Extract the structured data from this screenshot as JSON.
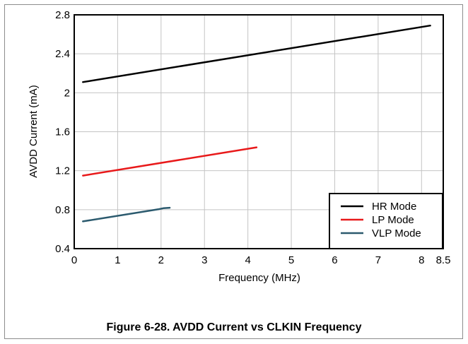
{
  "caption": "Figure 6-28. AVDD Current vs CLKIN Frequency",
  "chart_data": {
    "type": "line",
    "title": "",
    "xlabel": "Frequency (MHz)",
    "ylabel": "AVDD Current (mA)",
    "xlim": [
      0,
      8.5
    ],
    "ylim": [
      0.4,
      2.8
    ],
    "x_ticks": [
      0,
      1,
      2,
      3,
      4,
      5,
      6,
      7,
      8,
      8.5
    ],
    "x_tick_labels": [
      "0",
      "1",
      "2",
      "3",
      "4",
      "5",
      "6",
      "7",
      "8",
      "8.5"
    ],
    "y_ticks": [
      0.4,
      0.8,
      1.2,
      1.6,
      2,
      2.4,
      2.8
    ],
    "y_tick_labels": [
      "0.4",
      "0.8",
      "1.2",
      "1.6",
      "2",
      "2.4",
      "2.8"
    ],
    "grid": true,
    "legend_position": "bottom-right",
    "series": [
      {
        "name": "HR Mode",
        "color": "#000000",
        "x": [
          0.2,
          8.2
        ],
        "y": [
          2.11,
          2.69
        ]
      },
      {
        "name": "LP Mode",
        "color": "#e8191a",
        "x": [
          0.2,
          4.2
        ],
        "y": [
          1.15,
          1.44
        ]
      },
      {
        "name": "VLP Mode",
        "color": "#2b5a6e",
        "x": [
          0.2,
          1.95,
          2.05,
          2.2
        ],
        "y": [
          0.68,
          0.805,
          0.815,
          0.82
        ]
      }
    ]
  }
}
